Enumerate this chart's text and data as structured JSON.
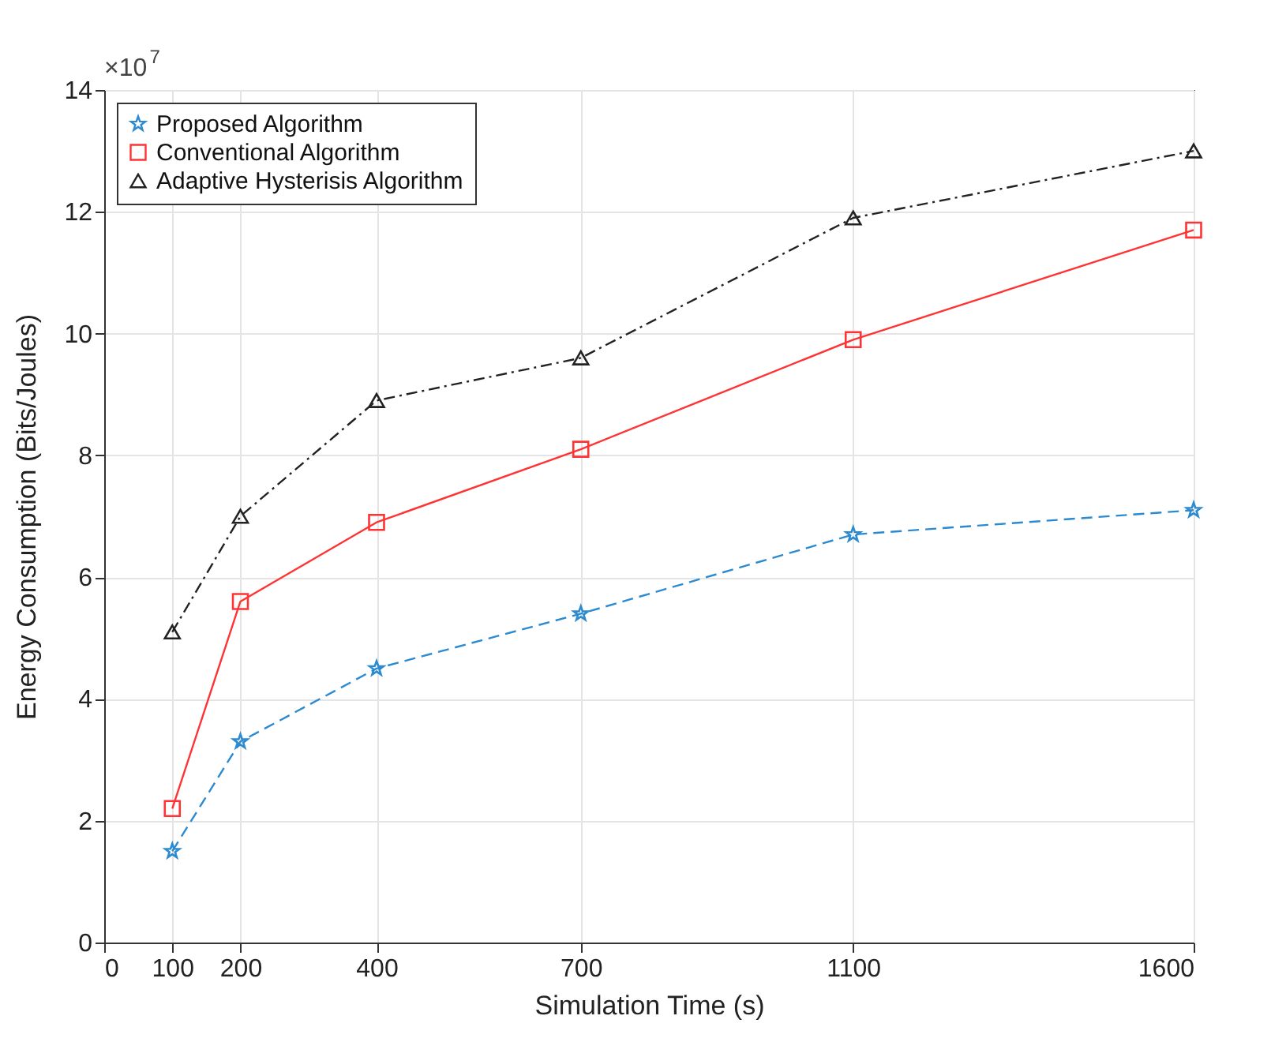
{
  "chart_data": {
    "type": "line",
    "xlabel": "Simulation Time (s)",
    "ylabel": "Energy Consumption (Bits/Joules)",
    "annotations": [
      "×10$^{7}$"
    ],
    "x": [
      100,
      200,
      400,
      700,
      1100,
      1600
    ],
    "series": [
      {
        "name": "Proposed Algorithm",
        "color": "#2b8ad0",
        "marker": "star",
        "line_style": "dashed",
        "values": [
          1.5,
          3.3,
          4.5,
          5.4,
          6.7,
          7.1
        ]
      },
      {
        "name": "Conventional Algorithm",
        "color": "#ff3333",
        "marker": "square",
        "line_style": "solid",
        "values": [
          2.2,
          5.6,
          6.9,
          8.1,
          9.9,
          11.7
        ]
      },
      {
        "name": "Adaptive Hysterisis Algorithm",
        "color": "#222222",
        "marker": "triangle",
        "line_style": "dashdot",
        "values": [
          5.1,
          7.0,
          8.9,
          9.6,
          11.9,
          13.0
        ]
      }
    ],
    "xlim": [
      0,
      1600
    ],
    "xticks": [
      0,
      100,
      200,
      400,
      700,
      1100,
      1600
    ],
    "ylim": [
      0,
      14
    ],
    "yticks": [
      0,
      2,
      4,
      6,
      8,
      10,
      12,
      14
    ],
    "grid": true,
    "legend": "top left"
  }
}
